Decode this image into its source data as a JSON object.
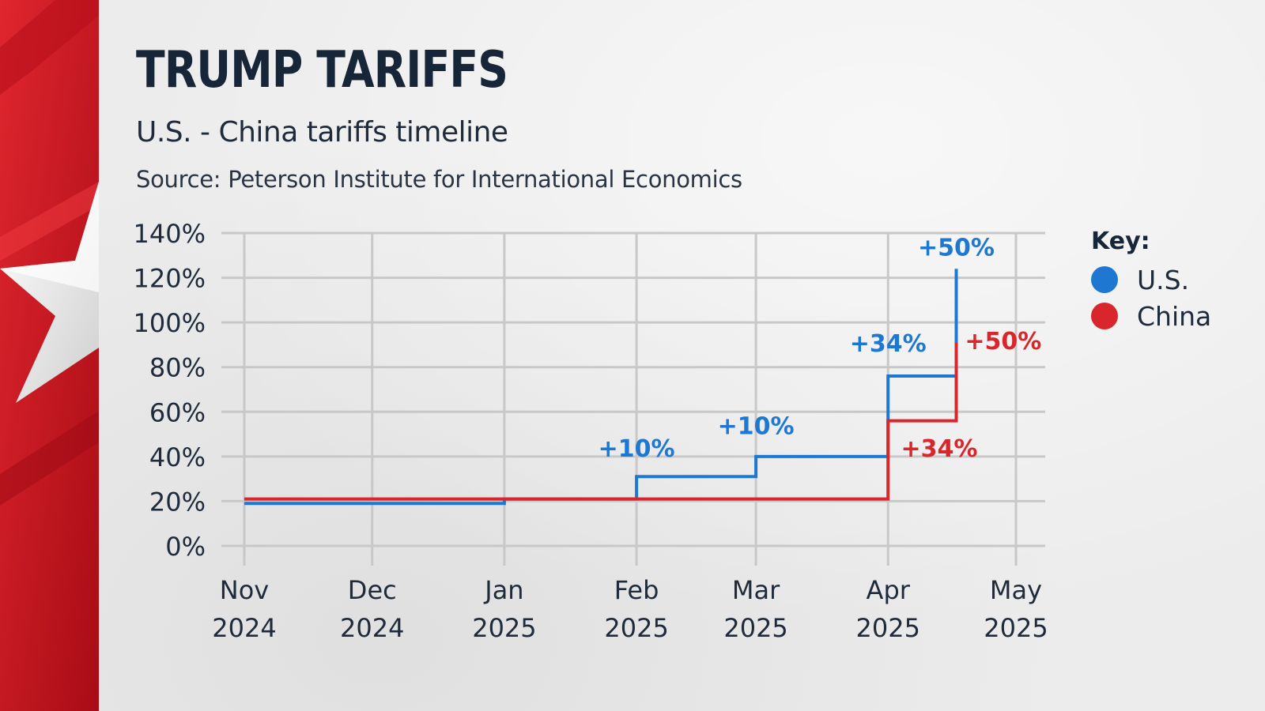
{
  "header": {
    "title": "TRUMP TARIFFS",
    "subtitle": "U.S. - China tariffs timeline",
    "source": "Source: Peterson Institute for International Economics"
  },
  "colors": {
    "us": "#1e78d2",
    "china": "#d9262c",
    "grid": "#c8c8c8",
    "text": "#1f2b3a",
    "side_panel": "#c8101c"
  },
  "legend": {
    "title": "Key:",
    "items": [
      {
        "label": "U.S.",
        "color": "#1e78d2"
      },
      {
        "label": "China",
        "color": "#d9262c"
      }
    ]
  },
  "chart_data": {
    "type": "line",
    "step": true,
    "x_axis": {
      "min": "2024-11-01",
      "max": "2025-05-01",
      "ticks": [
        {
          "date": "2024-11-01",
          "line1": "Nov",
          "line2": "2024"
        },
        {
          "date": "2024-12-01",
          "line1": "Dec",
          "line2": "2024"
        },
        {
          "date": "2025-01-01",
          "line1": "Jan",
          "line2": "2025"
        },
        {
          "date": "2025-02-01",
          "line1": "Feb",
          "line2": "2025"
        },
        {
          "date": "2025-03-01",
          "line1": "Mar",
          "line2": "2025"
        },
        {
          "date": "2025-04-01",
          "line1": "Apr",
          "line2": "2025"
        },
        {
          "date": "2025-05-01",
          "line1": "May",
          "line2": "2025"
        }
      ]
    },
    "y_axis": {
      "min": 0,
      "max": 140,
      "ticks": [
        0,
        20,
        40,
        60,
        80,
        100,
        120,
        140
      ],
      "tick_labels": [
        "0%",
        "20%",
        "40%",
        "60%",
        "80%",
        "100%",
        "120%",
        "140%"
      ]
    },
    "grid": true,
    "legend_position": "right",
    "series": [
      {
        "name": "U.S.",
        "color": "#1e78d2",
        "points": [
          {
            "x": "2024-11-01",
            "y": 19
          },
          {
            "x": "2025-01-01",
            "y": 19
          },
          {
            "x": "2025-01-01",
            "y": 21
          },
          {
            "x": "2025-02-01",
            "y": 21
          },
          {
            "x": "2025-02-01",
            "y": 31
          },
          {
            "x": "2025-03-01",
            "y": 31
          },
          {
            "x": "2025-03-01",
            "y": 40
          },
          {
            "x": "2025-04-01",
            "y": 40
          },
          {
            "x": "2025-04-01",
            "y": 76
          },
          {
            "x": "2025-04-17",
            "y": 76
          },
          {
            "x": "2025-04-17",
            "y": 124
          }
        ]
      },
      {
        "name": "China",
        "color": "#d9262c",
        "points": [
          {
            "x": "2024-11-01",
            "y": 21
          },
          {
            "x": "2025-04-01",
            "y": 21
          },
          {
            "x": "2025-04-01",
            "y": 56
          },
          {
            "x": "2025-04-17",
            "y": 56
          },
          {
            "x": "2025-04-17",
            "y": 91
          }
        ]
      }
    ],
    "annotations": [
      {
        "text": "+10%",
        "series": "U.S.",
        "x": "2025-02-01",
        "y": 40
      },
      {
        "text": "+10%",
        "series": "U.S.",
        "x": "2025-03-01",
        "y": 50
      },
      {
        "text": "+34%",
        "series": "U.S.",
        "x": "2025-04-01",
        "y": 87
      },
      {
        "text": "+50%",
        "series": "U.S.",
        "x": "2025-04-17",
        "y": 130
      },
      {
        "text": "+34%",
        "series": "China",
        "x": "2025-04-13",
        "y": 40
      },
      {
        "text": "+50%",
        "series": "China",
        "x": "2025-04-28",
        "y": 88
      }
    ]
  }
}
